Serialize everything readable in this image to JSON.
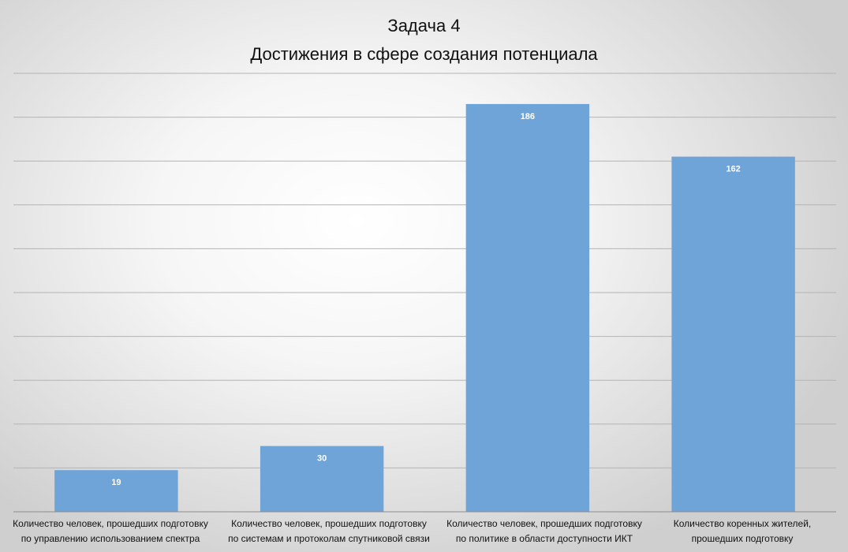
{
  "chart_data": {
    "type": "bar",
    "title": "Задача 4",
    "subtitle": "Достижения в сфере создания потенциала",
    "categories": [
      [
        "Количество человек, прошедших подготовку",
        "по управлению использованием спектра"
      ],
      [
        "Количество человек, прошедших подготовку",
        "по системам и протоколам спутниковой связи"
      ],
      [
        "Количество человек, прошедших подготовку",
        "по политике в области доступности ИКТ"
      ],
      [
        "Количество коренных жителей,",
        "прошедших подготовку"
      ]
    ],
    "values": [
      19,
      30,
      186,
      162
    ],
    "data_labels": [
      "19",
      "30",
      "186",
      "162"
    ],
    "ylim": [
      0,
      200
    ],
    "grid": true,
    "bar_color": "#6fa4d8",
    "gridline_color": "#b4b4b4",
    "legend": "none"
  }
}
